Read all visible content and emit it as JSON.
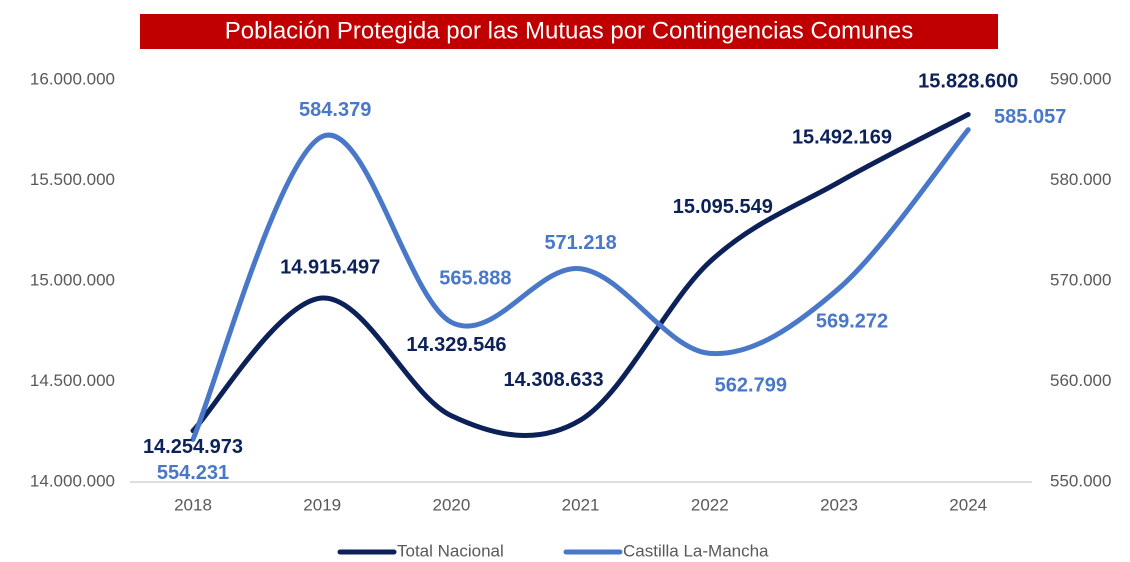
{
  "chart_data": {
    "type": "line",
    "title": "Población Protegida por las Mutuas por Contingencias Comunes",
    "categories": [
      "2018",
      "2019",
      "2020",
      "2021",
      "2022",
      "2023",
      "2024"
    ],
    "series": [
      {
        "name": "Total Nacional",
        "color": "#0d2159",
        "axis": "y",
        "values": [
          14254973,
          14915497,
          14329546,
          14308633,
          15095549,
          15492169,
          15828600
        ],
        "value_labels": [
          "14.254.973",
          "14.915.497",
          "14.329.546",
          "14.308.633",
          "15.095.549",
          "15.492.169",
          "15.828.600"
        ]
      },
      {
        "name": "Castilla La-Mancha",
        "color": "#4a78c8",
        "axis": "y2",
        "values": [
          554231,
          584379,
          565888,
          571218,
          562799,
          569272,
          585057
        ],
        "value_labels": [
          "554.231",
          "584.379",
          "565.888",
          "571.218",
          "562.799",
          "569.272",
          "585.057"
        ]
      }
    ],
    "ylim": [
      14000000,
      16000000
    ],
    "yticks": [
      {
        "value": 14000000,
        "label": "14.000.000"
      },
      {
        "value": 14500000,
        "label": "14.500.000"
      },
      {
        "value": 15000000,
        "label": "15.000.000"
      },
      {
        "value": 15500000,
        "label": "15.500.000"
      },
      {
        "value": 16000000,
        "label": "16.000.000"
      }
    ],
    "y2lim": [
      550000,
      590000
    ],
    "y2ticks": [
      {
        "value": 550000,
        "label": "550.000"
      },
      {
        "value": 560000,
        "label": "560.000"
      },
      {
        "value": 570000,
        "label": "570.000"
      },
      {
        "value": 580000,
        "label": "580.000"
      },
      {
        "value": 590000,
        "label": "590.000"
      }
    ],
    "smooth": true,
    "grid": false,
    "legend": "bottom"
  }
}
